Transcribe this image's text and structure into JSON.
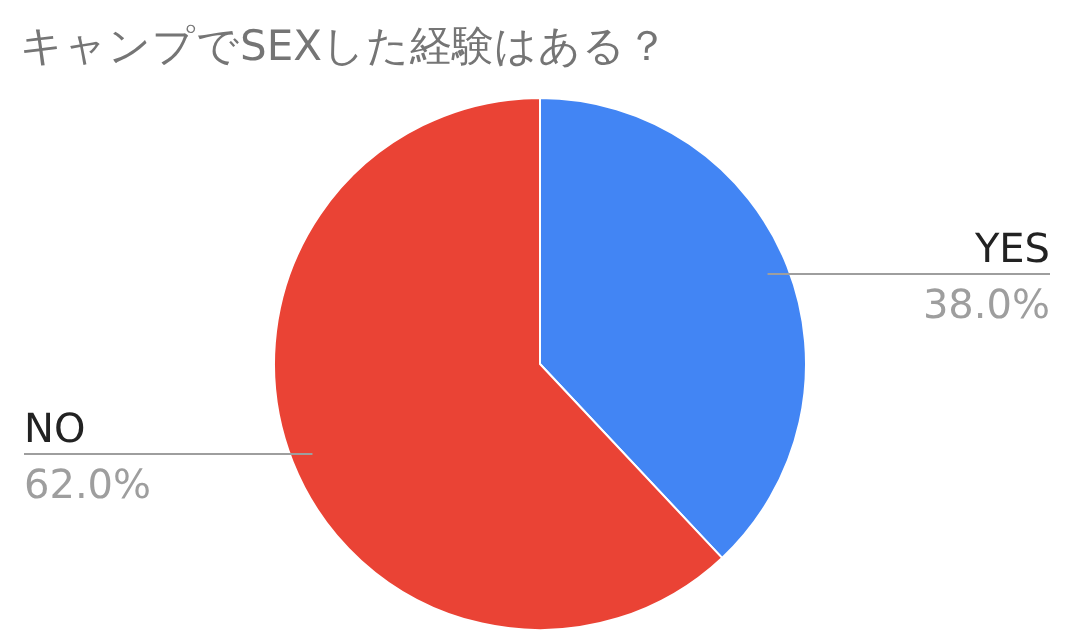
{
  "chart_data": {
    "type": "pie",
    "title": "キャンプでSEXした経験はある？",
    "categories": [
      "YES",
      "NO"
    ],
    "values": [
      38.0,
      62.0
    ],
    "value_labels": [
      "38.0%",
      "62.0%"
    ],
    "colors": [
      "#4285f4",
      "#ea4335"
    ],
    "legend": false
  }
}
